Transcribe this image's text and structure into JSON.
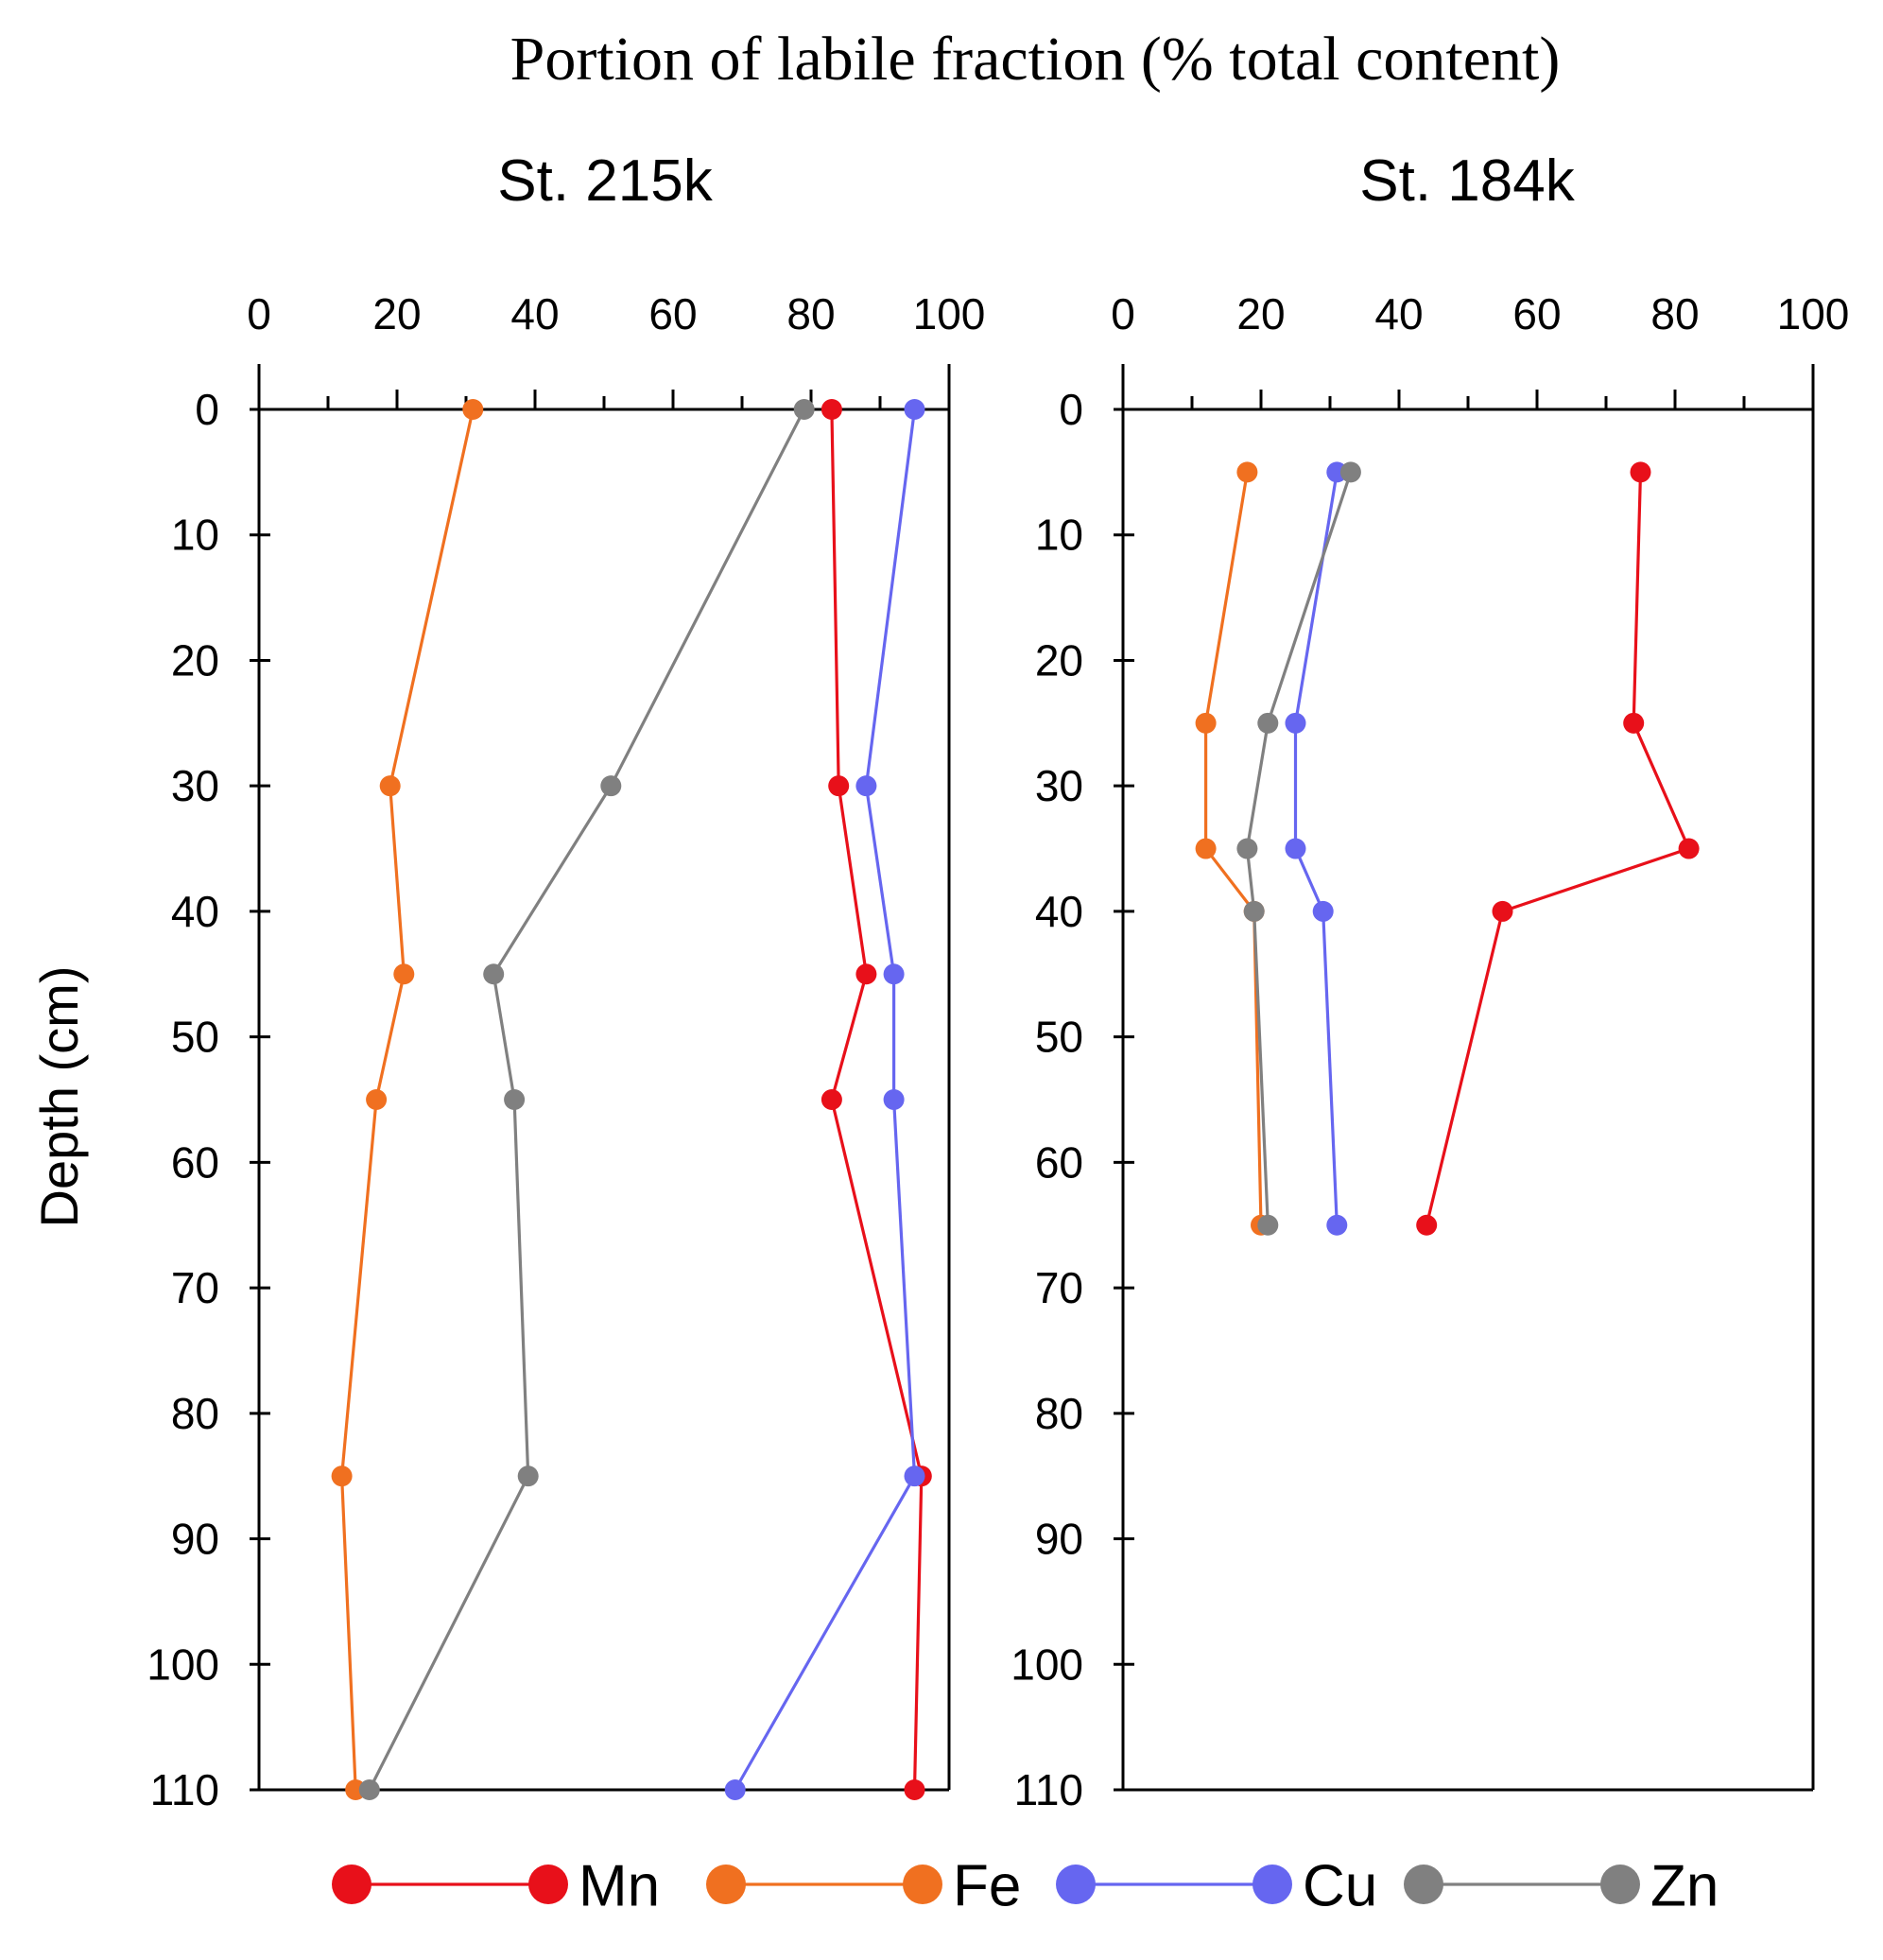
{
  "title": "Portion of labile fraction (% total content)",
  "ylabel": "Depth (cm)",
  "legend": [
    {
      "name": "Mn",
      "color": "#e8101a"
    },
    {
      "name": "Fe",
      "color": "#f07020"
    },
    {
      "name": "Cu",
      "color": "#6666f0"
    },
    {
      "name": "Zn",
      "color": "#808080"
    }
  ],
  "chart_data": [
    {
      "type": "line",
      "title": "St. 215k",
      "xlabel": "Portion of labile fraction (% total content)",
      "ylabel": "Depth (cm)",
      "xlim": [
        0,
        100
      ],
      "ylim": [
        0,
        110
      ],
      "y_inverted": true,
      "xticks": [
        0,
        20,
        40,
        60,
        80,
        100
      ],
      "xtick_labels": [
        "0",
        "20",
        "40",
        "60",
        "80",
        "100"
      ],
      "yticks": [
        0,
        10,
        20,
        30,
        40,
        50,
        60,
        70,
        80,
        90,
        100,
        110
      ],
      "ytick_labels": [
        "0",
        "10",
        "20",
        "30",
        "40",
        "50",
        "60",
        "70",
        "80",
        "90",
        "100",
        "110"
      ],
      "series": [
        {
          "name": "Mn",
          "color": "#e8101a",
          "points": [
            [
              83,
              0
            ],
            [
              84,
              30
            ],
            [
              88,
              45
            ],
            [
              83,
              55
            ],
            [
              96,
              85
            ],
            [
              95,
              110
            ]
          ]
        },
        {
          "name": "Fe",
          "color": "#f07020",
          "points": [
            [
              31,
              0
            ],
            [
              19,
              30
            ],
            [
              21,
              45
            ],
            [
              17,
              55
            ],
            [
              12,
              85
            ],
            [
              14,
              110
            ]
          ]
        },
        {
          "name": "Cu",
          "color": "#6666f0",
          "points": [
            [
              95,
              0
            ],
            [
              88,
              30
            ],
            [
              92,
              45
            ],
            [
              92,
              55
            ],
            [
              95,
              85
            ],
            [
              69,
              110
            ]
          ]
        },
        {
          "name": "Zn",
          "color": "#808080",
          "points": [
            [
              79,
              0
            ],
            [
              51,
              30
            ],
            [
              34,
              45
            ],
            [
              37,
              55
            ],
            [
              39,
              85
            ],
            [
              16,
              110
            ]
          ]
        }
      ]
    },
    {
      "type": "line",
      "title": "St. 184k",
      "xlabel": "Portion of labile fraction (% total content)",
      "ylabel": "Depth (cm)",
      "xlim": [
        0,
        100
      ],
      "ylim": [
        0,
        110
      ],
      "y_inverted": true,
      "xticks": [
        0,
        20,
        40,
        60,
        80,
        100
      ],
      "xtick_labels": [
        "0",
        "20",
        "40",
        "60",
        "80",
        "100"
      ],
      "yticks": [
        0,
        10,
        20,
        30,
        40,
        50,
        60,
        70,
        80,
        90,
        100,
        110
      ],
      "ytick_labels": [
        "0",
        "10",
        "20",
        "30",
        "40",
        "50",
        "60",
        "70",
        "80",
        "90",
        "100",
        "110"
      ],
      "series": [
        {
          "name": "Mn",
          "color": "#e8101a",
          "points": [
            [
              75,
              5
            ],
            [
              74,
              25
            ],
            [
              82,
              35
            ],
            [
              55,
              40
            ],
            [
              44,
              65
            ]
          ]
        },
        {
          "name": "Fe",
          "color": "#f07020",
          "points": [
            [
              18,
              5
            ],
            [
              12,
              25
            ],
            [
              12,
              35
            ],
            [
              19,
              40
            ],
            [
              20,
              65
            ]
          ]
        },
        {
          "name": "Cu",
          "color": "#6666f0",
          "points": [
            [
              31,
              5
            ],
            [
              25,
              25
            ],
            [
              25,
              35
            ],
            [
              29,
              40
            ],
            [
              31,
              65
            ]
          ]
        },
        {
          "name": "Zn",
          "color": "#808080",
          "points": [
            [
              33,
              5
            ],
            [
              21,
              25
            ],
            [
              18,
              35
            ],
            [
              19,
              40
            ],
            [
              21,
              65
            ]
          ]
        }
      ]
    }
  ]
}
